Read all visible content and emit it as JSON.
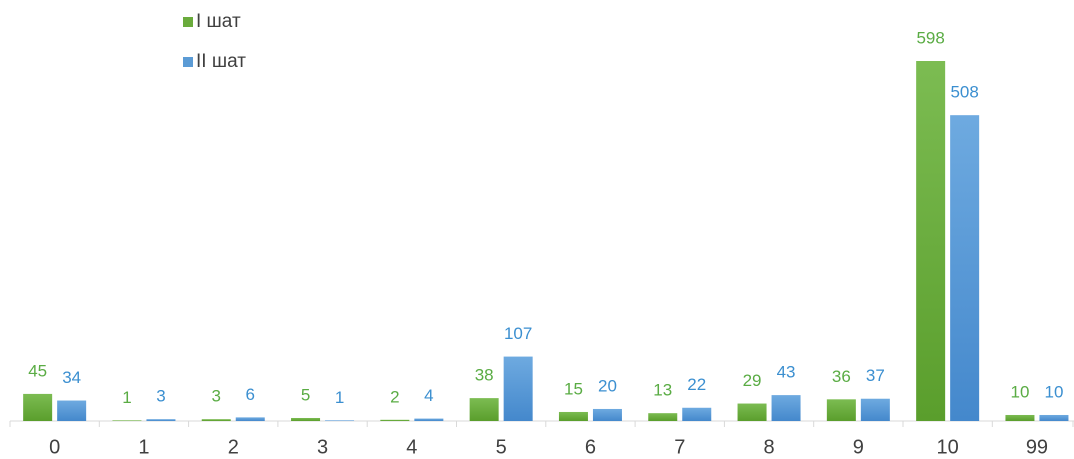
{
  "chart_data": {
    "type": "bar",
    "categories": [
      "0",
      "1",
      "2",
      "3",
      "4",
      "5",
      "6",
      "7",
      "8",
      "9",
      "10",
      "99"
    ],
    "series": [
      {
        "name": "I шат",
        "color": "#6aab3c",
        "values": [
          45,
          1,
          3,
          5,
          2,
          38,
          15,
          13,
          29,
          36,
          598,
          10
        ]
      },
      {
        "name": "II шат",
        "color": "#5b9bd5",
        "values": [
          34,
          3,
          6,
          1,
          4,
          107,
          20,
          22,
          43,
          37,
          508,
          10
        ]
      }
    ],
    "legend": "top-left"
  }
}
